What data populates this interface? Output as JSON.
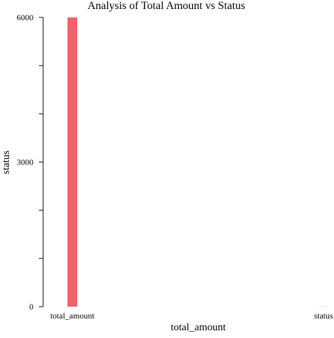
{
  "chart_data": {
    "type": "bar",
    "title": "Analysis of Total Amount vs Status",
    "xlabel": "total_amount",
    "ylabel": "status",
    "categories": [
      "total_amount",
      "status"
    ],
    "values": [
      6000,
      0
    ],
    "ylim": [
      0,
      6000
    ],
    "yticks": [
      0,
      3000,
      6000
    ],
    "ytick_labels": [
      "0",
      "3000",
      "6000"
    ],
    "grid": false,
    "legend": "none",
    "colors": {
      "bar": "#f4606c",
      "zero_bar": "#e8e8e8"
    }
  }
}
